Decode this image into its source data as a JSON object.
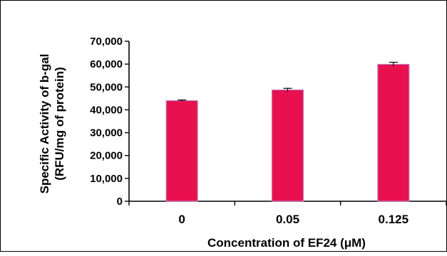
{
  "chart_data": {
    "type": "bar",
    "categories": [
      "0",
      "0.05",
      "0.125"
    ],
    "values": [
      44000,
      48700,
      59900
    ],
    "errors": [
      300,
      700,
      900
    ],
    "xlabel": "Concentration of EF24 (μM)",
    "ylabel": [
      "Specific Activity of b-gal",
      "(RFU/mg of protein)"
    ],
    "ylim": [
      0,
      70000
    ],
    "yticks": [
      0,
      10000,
      20000,
      30000,
      40000,
      50000,
      60000,
      70000
    ],
    "ytick_labels": [
      "0",
      "10,000",
      "20,000",
      "30,000",
      "40,000",
      "50,000",
      "60,000",
      "70,000"
    ],
    "bar_color": "#E8104E",
    "bar_edge_color": "#C77BC0",
    "grid": false,
    "legend": "none"
  }
}
